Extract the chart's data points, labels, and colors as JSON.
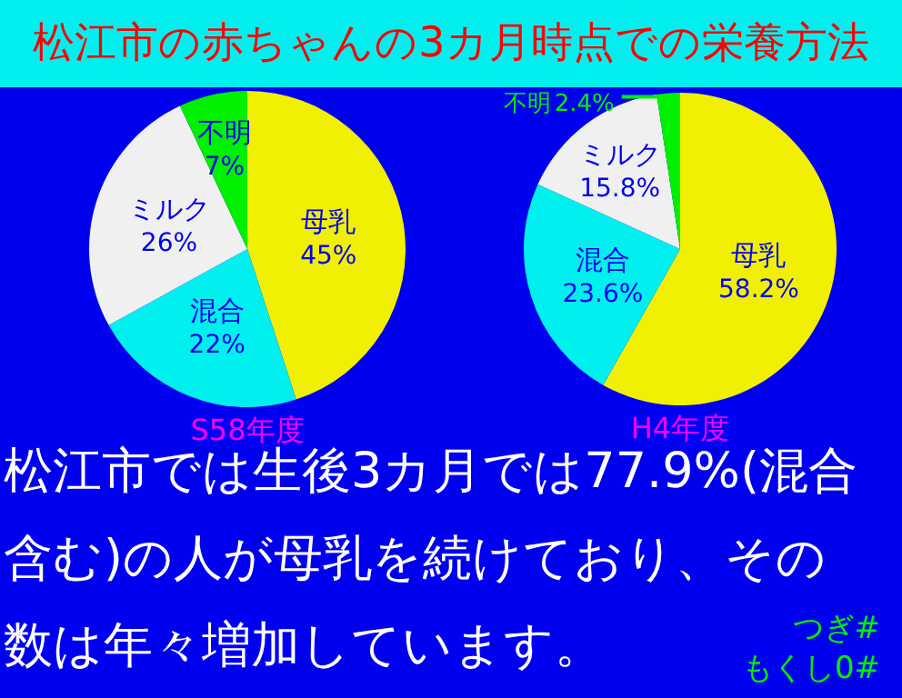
{
  "chart_data": [
    {
      "type": "other",
      "title": "松江市の赤ちゃんの3カ月時点での栄養方法",
      "annotations": [
        "松江市では生後3カ月では77.9%(混合含む)の人が母乳を続けており、その数は年々増加しています。",
        "つぎ#",
        "もくし0#"
      ]
    },
    {
      "type": "pie",
      "xlabel": "S58年度",
      "categories": [
        "母乳",
        "混合",
        "ミルク",
        "不明"
      ],
      "values": [
        45,
        22,
        26,
        7
      ],
      "value_labels": [
        "45%",
        "22%",
        "26%",
        "7%"
      ],
      "colors": [
        "#f0f000",
        "#00f0f0",
        "#f0f0f0",
        "#00f000"
      ]
    },
    {
      "type": "pie",
      "xlabel": "H4年度",
      "categories": [
        "母乳",
        "混合",
        "ミルク",
        "不明"
      ],
      "values": [
        58.2,
        23.6,
        15.8,
        2.4
      ],
      "value_labels": [
        "58.2%",
        "23.6%",
        "15.8%",
        "2.4%"
      ],
      "colors": [
        "#f0f000",
        "#00f0f0",
        "#f0f0f0",
        "#00f000"
      ]
    }
  ]
}
